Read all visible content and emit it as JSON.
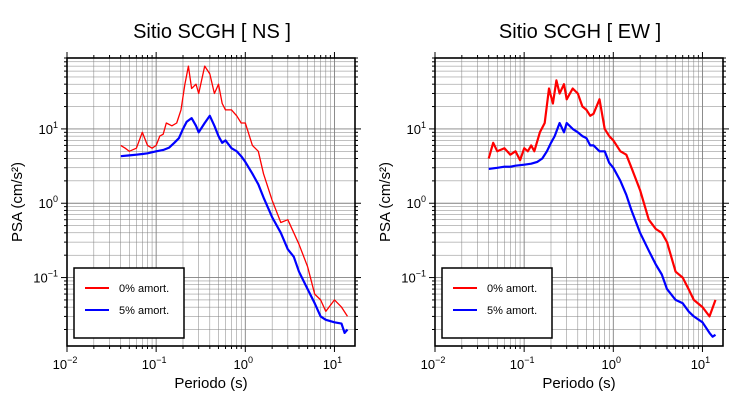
{
  "chart_data": [
    {
      "type": "line",
      "title": "Sitio SCGH [ NS ]",
      "xlabel": "Periodo (s)",
      "ylabel": "PSA (cm/s²)",
      "xscale": "log",
      "yscale": "log",
      "xlim": [
        0.01,
        17
      ],
      "ylim": [
        0.012,
        90
      ],
      "xticks": [
        {
          "v": 0.01,
          "b": "10",
          "e": "−2"
        },
        {
          "v": 0.1,
          "b": "10",
          "e": "−1"
        },
        {
          "v": 1,
          "b": "10",
          "e": "0"
        },
        {
          "v": 10,
          "b": "10",
          "e": "1"
        }
      ],
      "yticks": [
        {
          "v": 0.1,
          "b": "10",
          "e": "−1"
        },
        {
          "v": 1,
          "b": "10",
          "e": "0"
        },
        {
          "v": 10,
          "b": "10",
          "e": "1"
        }
      ],
      "grid": true,
      "legend_position": "bottom-left",
      "series": [
        {
          "name": "0% amort.",
          "color": "#ff0000",
          "width": 1.3,
          "x": [
            0.04,
            0.045,
            0.05,
            0.06,
            0.07,
            0.08,
            0.09,
            0.1,
            0.11,
            0.12,
            0.13,
            0.15,
            0.17,
            0.19,
            0.21,
            0.23,
            0.25,
            0.28,
            0.3,
            0.35,
            0.4,
            0.45,
            0.5,
            0.55,
            0.6,
            0.7,
            0.8,
            0.9,
            1.0,
            1.2,
            1.4,
            1.6,
            2.0,
            2.5,
            3.0,
            3.5,
            4.0,
            5.0,
            6.0,
            7.0,
            8.0,
            10.0,
            12.0,
            14.0
          ],
          "y": [
            6.0,
            5.5,
            5.0,
            5.5,
            9.0,
            6.0,
            5.5,
            6.0,
            8.0,
            8.5,
            12.0,
            11.0,
            12.0,
            18.0,
            40.0,
            70.0,
            35.0,
            40.0,
            30.0,
            70.0,
            55.0,
            30.0,
            40.0,
            22.0,
            18.0,
            18.0,
            15.0,
            12.0,
            12.0,
            6.0,
            5.0,
            2.5,
            1.1,
            0.55,
            0.6,
            0.4,
            0.28,
            0.14,
            0.06,
            0.05,
            0.035,
            0.05,
            0.04,
            0.03
          ]
        },
        {
          "name": "5% amort.",
          "color": "#0000ff",
          "width": 2.2,
          "x": [
            0.04,
            0.05,
            0.06,
            0.07,
            0.08,
            0.1,
            0.12,
            0.14,
            0.16,
            0.18,
            0.2,
            0.22,
            0.25,
            0.28,
            0.3,
            0.35,
            0.4,
            0.45,
            0.5,
            0.55,
            0.6,
            0.7,
            0.8,
            0.9,
            1.0,
            1.2,
            1.4,
            1.6,
            2.0,
            2.5,
            3.0,
            3.5,
            4.0,
            5.0,
            6.0,
            7.0,
            8.0,
            10.0,
            12.0,
            13.0,
            14.0
          ],
          "y": [
            4.3,
            4.4,
            4.5,
            4.6,
            4.7,
            5.0,
            5.2,
            5.6,
            6.5,
            7.5,
            10.0,
            12.5,
            14.0,
            11.0,
            9.0,
            12.0,
            15.0,
            11.0,
            8.0,
            6.5,
            7.0,
            5.5,
            5.0,
            4.3,
            3.6,
            2.5,
            1.8,
            1.2,
            0.65,
            0.4,
            0.24,
            0.19,
            0.12,
            0.07,
            0.045,
            0.03,
            0.027,
            0.025,
            0.024,
            0.018,
            0.02
          ]
        }
      ]
    },
    {
      "type": "line",
      "title": "Sitio SCGH [ EW ]",
      "xlabel": "Periodo (s)",
      "ylabel": "PSA (cm/s²)",
      "xscale": "log",
      "yscale": "log",
      "xlim": [
        0.01,
        17
      ],
      "ylim": [
        0.012,
        90
      ],
      "xticks": [
        {
          "v": 0.01,
          "b": "10",
          "e": "−2"
        },
        {
          "v": 0.1,
          "b": "10",
          "e": "−1"
        },
        {
          "v": 1,
          "b": "10",
          "e": "0"
        },
        {
          "v": 10,
          "b": "10",
          "e": "1"
        }
      ],
      "yticks": [
        {
          "v": 0.1,
          "b": "10",
          "e": "−1"
        },
        {
          "v": 1,
          "b": "10",
          "e": "0"
        },
        {
          "v": 10,
          "b": "10",
          "e": "1"
        }
      ],
      "grid": true,
      "legend_position": "bottom-left",
      "series": [
        {
          "name": "0% amort.",
          "color": "#ff0000",
          "width": 2.2,
          "x": [
            0.04,
            0.045,
            0.05,
            0.06,
            0.07,
            0.08,
            0.09,
            0.1,
            0.11,
            0.12,
            0.13,
            0.15,
            0.17,
            0.19,
            0.21,
            0.23,
            0.25,
            0.28,
            0.3,
            0.35,
            0.4,
            0.45,
            0.5,
            0.55,
            0.6,
            0.7,
            0.8,
            0.9,
            1.0,
            1.2,
            1.4,
            1.6,
            2.0,
            2.5,
            3.0,
            3.5,
            4.0,
            5.0,
            6.0,
            7.0,
            8.0,
            10.0,
            12.0,
            14.0
          ],
          "y": [
            4.0,
            6.5,
            5.0,
            5.5,
            4.5,
            5.0,
            3.8,
            5.5,
            5.0,
            6.0,
            5.0,
            9.0,
            12.0,
            35.0,
            22.0,
            45.0,
            30.0,
            40.0,
            25.0,
            35.0,
            30.0,
            20.0,
            18.0,
            15.0,
            16.0,
            25.0,
            10.0,
            8.0,
            7.0,
            5.0,
            4.5,
            3.0,
            1.5,
            0.6,
            0.45,
            0.4,
            0.3,
            0.12,
            0.1,
            0.07,
            0.05,
            0.04,
            0.03,
            0.05
          ]
        },
        {
          "name": "5% amort.",
          "color": "#0000ff",
          "width": 2.2,
          "x": [
            0.04,
            0.05,
            0.06,
            0.07,
            0.08,
            0.1,
            0.12,
            0.14,
            0.16,
            0.18,
            0.2,
            0.22,
            0.25,
            0.28,
            0.3,
            0.35,
            0.4,
            0.45,
            0.5,
            0.55,
            0.6,
            0.7,
            0.8,
            0.9,
            1.0,
            1.2,
            1.4,
            1.6,
            2.0,
            2.5,
            3.0,
            3.5,
            4.0,
            5.0,
            6.0,
            7.0,
            8.0,
            10.0,
            12.0,
            13.0,
            14.0
          ],
          "y": [
            2.9,
            3.0,
            3.1,
            3.1,
            3.2,
            3.3,
            3.4,
            3.6,
            4.0,
            5.0,
            6.5,
            8.0,
            12.0,
            9.0,
            12.0,
            10.0,
            9.0,
            8.0,
            7.5,
            6.0,
            6.0,
            5.0,
            5.0,
            3.5,
            3.0,
            2.0,
            1.3,
            0.8,
            0.4,
            0.23,
            0.15,
            0.11,
            0.07,
            0.05,
            0.045,
            0.035,
            0.03,
            0.025,
            0.018,
            0.016,
            0.017
          ]
        }
      ]
    }
  ]
}
